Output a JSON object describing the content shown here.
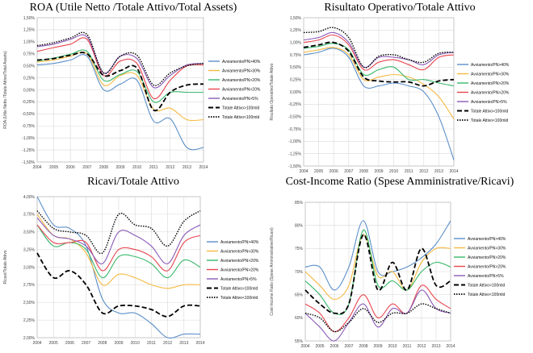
{
  "chart_data": [
    {
      "type": "line",
      "title": "ROA (Utile Netto /Totale Attivo/Total Assets)",
      "xlabel": "",
      "ylabel": "ROA (Utile Netto /Totale Attivo/Total Assets)",
      "x": [
        "2004",
        "2005",
        "2006",
        "2007",
        "2008",
        "2009",
        "2010",
        "2011",
        "2012",
        "2013",
        "2014"
      ],
      "ylim": [
        -1.5,
        1.5
      ],
      "yticks": [
        "1,50%",
        "1,25%",
        "1,00%",
        "0,75%",
        "0,50%",
        "0,25%",
        "0,00%",
        "-0,25%",
        "-0,50%",
        "-0,75%",
        "-1,00%",
        "-1,25%",
        "-1,50%"
      ],
      "grid": true,
      "legend_position": "right",
      "series": [
        {
          "name": "Avviamento/PN>40%",
          "color": "#5b8fc9",
          "dash": "",
          "width": 1.1,
          "values": [
            0.52,
            0.55,
            0.62,
            0.7,
            0.0,
            0.12,
            0.2,
            -0.65,
            -0.6,
            -1.2,
            -1.2
          ]
        },
        {
          "name": "Avviamento/PN>30%",
          "color": "#f5b942",
          "dash": "",
          "width": 1.1,
          "values": [
            0.58,
            0.62,
            0.7,
            0.75,
            0.1,
            0.3,
            0.3,
            -0.4,
            -0.38,
            -0.62,
            -0.62
          ]
        },
        {
          "name": "Avviamento/PN>20%",
          "color": "#39b86a",
          "dash": "",
          "width": 1.1,
          "values": [
            0.6,
            0.66,
            0.74,
            0.8,
            0.2,
            0.32,
            0.38,
            -0.25,
            -0.05,
            -0.05,
            -0.05
          ]
        },
        {
          "name": "Avviamento/PN>20%",
          "color": "#e8454f",
          "dash": "",
          "width": 1.1,
          "values": [
            0.8,
            0.88,
            0.95,
            1.05,
            0.3,
            0.6,
            0.55,
            -0.18,
            0.2,
            0.5,
            0.52
          ]
        },
        {
          "name": "Avviamento/PN>5%",
          "color": "#8a5ab8",
          "dash": "",
          "width": 1.1,
          "values": [
            0.9,
            0.95,
            1.05,
            1.1,
            0.35,
            0.7,
            0.65,
            0.05,
            0.3,
            0.52,
            0.55
          ]
        },
        {
          "name": "Totale Attivo>100mld",
          "color": "#000000",
          "dash": "6,3",
          "width": 1.8,
          "values": [
            0.62,
            0.65,
            0.72,
            0.75,
            0.3,
            0.4,
            0.45,
            -0.42,
            -0.05,
            0.1,
            0.12
          ]
        },
        {
          "name": "Totale Attivo<100mld",
          "color": "#000000",
          "dash": "1.5,1.5",
          "width": 1.4,
          "values": [
            0.92,
            0.98,
            1.08,
            1.15,
            0.35,
            0.7,
            0.72,
            0.1,
            0.35,
            0.5,
            0.55
          ]
        }
      ]
    },
    {
      "type": "line",
      "title": "Risultato Operativo/Totale Attivo",
      "xlabel": "",
      "ylabel": "Risultato Operativo/Totale Attivo",
      "x": [
        "2004",
        "2005",
        "2006",
        "2007",
        "2008",
        "2009",
        "2010",
        "2011",
        "2012",
        "2013",
        "2014"
      ],
      "ylim": [
        -1.5,
        1.5
      ],
      "yticks": [
        "1,50%",
        "1,25%",
        "1,00%",
        "0,75%",
        "0,50%",
        "0,25%",
        "0,00%",
        "-0,25%",
        "-0,50%",
        "-0,75%",
        "-1,00%",
        "-1,25%",
        "-1,50%"
      ],
      "grid": true,
      "legend_position": "right",
      "series": [
        {
          "name": "Avviamento/PN>40%",
          "color": "#5b8fc9",
          "dash": "",
          "width": 1.1,
          "values": [
            0.75,
            0.8,
            0.88,
            0.7,
            0.12,
            0.12,
            0.18,
            0.12,
            0.0,
            -0.5,
            -1.38
          ]
        },
        {
          "name": "Avviamento/PN>30%",
          "color": "#f5b942",
          "dash": "",
          "width": 1.1,
          "values": [
            0.8,
            0.85,
            0.9,
            0.75,
            0.25,
            0.3,
            0.35,
            0.3,
            0.15,
            -0.1,
            -0.55
          ]
        },
        {
          "name": "Avviamento/PN>20%",
          "color": "#39b86a",
          "dash": "",
          "width": 1.1,
          "values": [
            0.88,
            0.92,
            0.98,
            0.85,
            0.35,
            0.45,
            0.5,
            0.25,
            0.25,
            0.18,
            0.12
          ]
        },
        {
          "name": "Avviamento/PN>20%",
          "color": "#e8454f",
          "dash": "",
          "width": 1.1,
          "values": [
            1.0,
            1.05,
            1.15,
            0.95,
            0.45,
            0.6,
            0.65,
            0.55,
            0.45,
            0.7,
            0.75
          ]
        },
        {
          "name": "Avviamento/PN>5%",
          "color": "#8a5ab8",
          "dash": "",
          "width": 1.1,
          "values": [
            1.05,
            1.1,
            1.2,
            1.0,
            0.5,
            0.7,
            0.7,
            0.65,
            0.55,
            0.75,
            0.8
          ]
        },
        {
          "name": "Totale Attivo>100mld",
          "color": "#000000",
          "dash": "6,3",
          "width": 1.8,
          "values": [
            0.9,
            0.95,
            1.0,
            0.82,
            0.3,
            0.22,
            0.2,
            0.2,
            0.12,
            0.22,
            0.25
          ]
        },
        {
          "name": "Totale Attivo<100mld",
          "color": "#000000",
          "dash": "1.5,1.5",
          "width": 1.4,
          "values": [
            1.2,
            1.22,
            1.3,
            1.1,
            0.5,
            0.72,
            0.75,
            0.65,
            0.6,
            0.78,
            0.8
          ]
        }
      ]
    },
    {
      "type": "line",
      "title": "Ricavi/Totale Attivo",
      "xlabel": "",
      "ylabel": "Ricavi/Totale Attivo",
      "x": [
        "2004",
        "2005",
        "2006",
        "2007",
        "2008",
        "2009",
        "2010",
        "2011",
        "2012",
        "2013",
        "2014"
      ],
      "ylim": [
        2.0,
        4.0
      ],
      "yticks": [
        "4,00%",
        "3,75%",
        "3,50%",
        "3,25%",
        "3,00%",
        "2,75%",
        "2,50%",
        "2,25%",
        "2,00%"
      ],
      "grid": true,
      "legend_position": "right",
      "series": [
        {
          "name": "Avviamento/PN>40%",
          "color": "#5b8fc9",
          "dash": "",
          "width": 1.1,
          "values": [
            4.0,
            3.6,
            3.55,
            3.3,
            2.55,
            2.35,
            2.35,
            2.2,
            2.0,
            2.05,
            2.05
          ]
        },
        {
          "name": "Avviamento/PN>30%",
          "color": "#f5b942",
          "dash": "",
          "width": 1.1,
          "values": [
            3.75,
            3.45,
            3.4,
            3.2,
            2.75,
            2.9,
            2.85,
            2.75,
            2.7,
            2.75,
            2.75
          ]
        },
        {
          "name": "Avviamento/PN>20%",
          "color": "#39b86a",
          "dash": "",
          "width": 1.1,
          "values": [
            3.6,
            3.3,
            3.35,
            3.25,
            2.85,
            3.15,
            3.15,
            3.05,
            2.85,
            3.1,
            3.0
          ]
        },
        {
          "name": "Avviamento/PN>20%",
          "color": "#e8454f",
          "dash": "",
          "width": 1.1,
          "values": [
            3.6,
            3.35,
            3.35,
            3.35,
            2.95,
            3.25,
            3.25,
            3.15,
            2.95,
            3.35,
            3.45
          ]
        },
        {
          "name": "Avviamento/PN>5%",
          "color": "#8a5ab8",
          "dash": "",
          "width": 1.1,
          "values": [
            3.7,
            3.45,
            3.4,
            3.3,
            3.05,
            3.5,
            3.45,
            3.3,
            3.05,
            3.45,
            3.6
          ]
        },
        {
          "name": "Totale Attivo>100mld",
          "color": "#000000",
          "dash": "6,3",
          "width": 1.8,
          "values": [
            3.2,
            2.85,
            2.95,
            2.75,
            2.35,
            2.45,
            2.45,
            2.4,
            2.3,
            2.45,
            2.45
          ]
        },
        {
          "name": "Totale Attivo<100mld",
          "color": "#000000",
          "dash": "1.5,1.5",
          "width": 1.4,
          "values": [
            3.8,
            3.55,
            3.5,
            3.45,
            3.2,
            3.75,
            3.6,
            3.55,
            3.3,
            3.65,
            3.8
          ]
        }
      ]
    },
    {
      "type": "line",
      "title": "Cost-Income Ratio (Spese Amministrative/Ricavi)",
      "xlabel": "",
      "ylabel": "Cost-Income Ratio (Spese Amministrative/Ricavi)",
      "x": [
        "2004",
        "2005",
        "2006",
        "2007",
        "2008",
        "2009",
        "2010",
        "2011",
        "2012",
        "2013",
        "2014"
      ],
      "ylim": [
        55,
        85
      ],
      "yticks": [
        "85%",
        "80%",
        "75%",
        "70%",
        "65%",
        "60%",
        "55%"
      ],
      "grid": true,
      "legend_position": "right",
      "series": [
        {
          "name": "Avviamento/PN>40%",
          "color": "#5b8fc9",
          "dash": "",
          "width": 1.1,
          "values": [
            71,
            71,
            66,
            71,
            81,
            70,
            70,
            71,
            73,
            76,
            81
          ]
        },
        {
          "name": "Avviamento/PN>30%",
          "color": "#f5b942",
          "dash": "",
          "width": 1.1,
          "values": [
            70,
            67,
            64,
            67,
            78,
            69,
            70,
            66,
            72,
            75,
            75
          ]
        },
        {
          "name": "Avviamento/PN>20%",
          "color": "#39b86a",
          "dash": "",
          "width": 1.1,
          "values": [
            68,
            65,
            61,
            63,
            79,
            67,
            68,
            66,
            70,
            72,
            71
          ]
        },
        {
          "name": "Avviamento/PN>20%",
          "color": "#e8454f",
          "dash": "",
          "width": 1.1,
          "values": [
            63,
            61,
            57,
            60,
            65,
            60,
            63,
            61,
            67,
            64,
            62
          ]
        },
        {
          "name": "Avviamento/PN>5%",
          "color": "#8a5ab8",
          "dash": "",
          "width": 1.1,
          "values": [
            61,
            58,
            55,
            59,
            63,
            58,
            62,
            61,
            66,
            62,
            61
          ]
        },
        {
          "name": "Totale Attivo>100mld",
          "color": "#000000",
          "dash": "6,3",
          "width": 1.8,
          "values": [
            66,
            63,
            61,
            63,
            78,
            66,
            72,
            66,
            75,
            67,
            68
          ]
        },
        {
          "name": "Totale Attivo<100mld",
          "color": "#000000",
          "dash": "1.5,1.5",
          "width": 1.4,
          "values": [
            61,
            60,
            57,
            59,
            62,
            59,
            61,
            61,
            63,
            62,
            61
          ]
        }
      ]
    }
  ]
}
